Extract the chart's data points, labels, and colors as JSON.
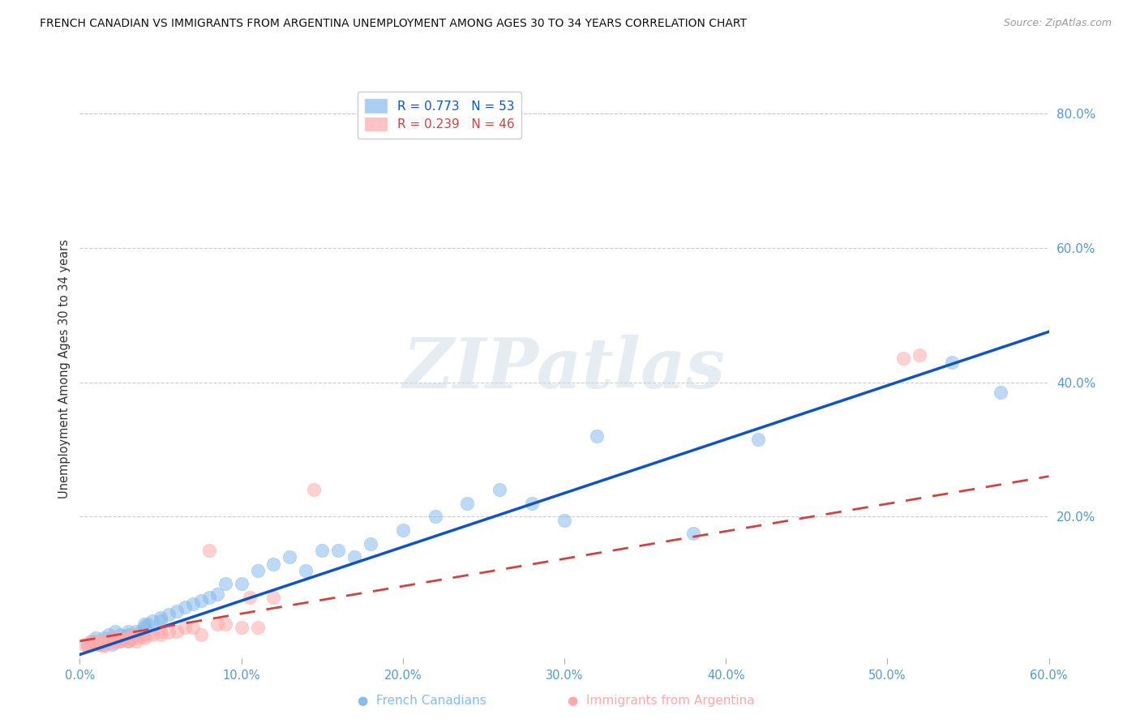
{
  "title": "FRENCH CANADIAN VS IMMIGRANTS FROM ARGENTINA UNEMPLOYMENT AMONG AGES 30 TO 34 YEARS CORRELATION CHART",
  "source": "Source: ZipAtlas.com",
  "ylabel": "Unemployment Among Ages 30 to 34 years",
  "R_blue": 0.773,
  "N_blue": 53,
  "R_pink": 0.239,
  "N_pink": 46,
  "xlim": [
    0.0,
    0.6
  ],
  "ylim": [
    -0.01,
    0.85
  ],
  "xticks": [
    0.0,
    0.1,
    0.2,
    0.3,
    0.4,
    0.5,
    0.6
  ],
  "yticks_right": [
    0.2,
    0.4,
    0.6,
    0.8
  ],
  "blue_scatter_color": "#88BBEE",
  "pink_scatter_color": "#FFAAAA",
  "blue_line_color": "#1155BB",
  "pink_line_color": "#CC4444",
  "tick_label_color": "#5599CC",
  "grid_color": "#CCCCCC",
  "watermark_text": "ZIPatlas",
  "watermark_color": "#CCDDE8",
  "blue_scatter_x": [
    0.005,
    0.008,
    0.01,
    0.012,
    0.015,
    0.015,
    0.018,
    0.02,
    0.02,
    0.022,
    0.025,
    0.025,
    0.028,
    0.03,
    0.03,
    0.03,
    0.032,
    0.035,
    0.038,
    0.04,
    0.04,
    0.042,
    0.045,
    0.05,
    0.05,
    0.055,
    0.06,
    0.065,
    0.07,
    0.075,
    0.08,
    0.085,
    0.09,
    0.1,
    0.11,
    0.12,
    0.13,
    0.14,
    0.15,
    0.16,
    0.17,
    0.18,
    0.2,
    0.22,
    0.24,
    0.26,
    0.28,
    0.3,
    0.32,
    0.38,
    0.42,
    0.54,
    0.57
  ],
  "blue_scatter_y": [
    0.01,
    0.015,
    0.02,
    0.01,
    0.02,
    0.01,
    0.025,
    0.02,
    0.01,
    0.03,
    0.025,
    0.015,
    0.02,
    0.03,
    0.025,
    0.015,
    0.025,
    0.03,
    0.03,
    0.04,
    0.035,
    0.04,
    0.045,
    0.05,
    0.045,
    0.055,
    0.06,
    0.065,
    0.07,
    0.075,
    0.08,
    0.085,
    0.1,
    0.1,
    0.12,
    0.13,
    0.14,
    0.12,
    0.15,
    0.15,
    0.14,
    0.16,
    0.18,
    0.2,
    0.22,
    0.24,
    0.22,
    0.195,
    0.32,
    0.175,
    0.315,
    0.43,
    0.385
  ],
  "pink_scatter_x": [
    0.003,
    0.005,
    0.007,
    0.008,
    0.01,
    0.01,
    0.012,
    0.013,
    0.015,
    0.015,
    0.018,
    0.02,
    0.02,
    0.022,
    0.022,
    0.025,
    0.025,
    0.028,
    0.03,
    0.03,
    0.032,
    0.033,
    0.035,
    0.035,
    0.038,
    0.04,
    0.04,
    0.042,
    0.045,
    0.05,
    0.05,
    0.055,
    0.06,
    0.065,
    0.07,
    0.075,
    0.08,
    0.085,
    0.09,
    0.1,
    0.105,
    0.11,
    0.12,
    0.145,
    0.51,
    0.52
  ],
  "pink_scatter_y": [
    0.01,
    0.008,
    0.015,
    0.01,
    0.012,
    0.015,
    0.01,
    0.015,
    0.012,
    0.008,
    0.015,
    0.02,
    0.015,
    0.018,
    0.012,
    0.02,
    0.015,
    0.018,
    0.02,
    0.015,
    0.018,
    0.025,
    0.02,
    0.015,
    0.022,
    0.025,
    0.02,
    0.025,
    0.025,
    0.03,
    0.025,
    0.028,
    0.03,
    0.035,
    0.035,
    0.025,
    0.15,
    0.04,
    0.04,
    0.035,
    0.08,
    0.035,
    0.08,
    0.24,
    0.435,
    0.44
  ],
  "blue_regline_x0": 0.0,
  "blue_regline_y0": -0.005,
  "blue_regline_x1": 0.6,
  "blue_regline_y1": 0.475,
  "pink_regline_x0": 0.0,
  "pink_regline_y0": 0.015,
  "pink_regline_x1": 0.6,
  "pink_regline_y1": 0.26
}
